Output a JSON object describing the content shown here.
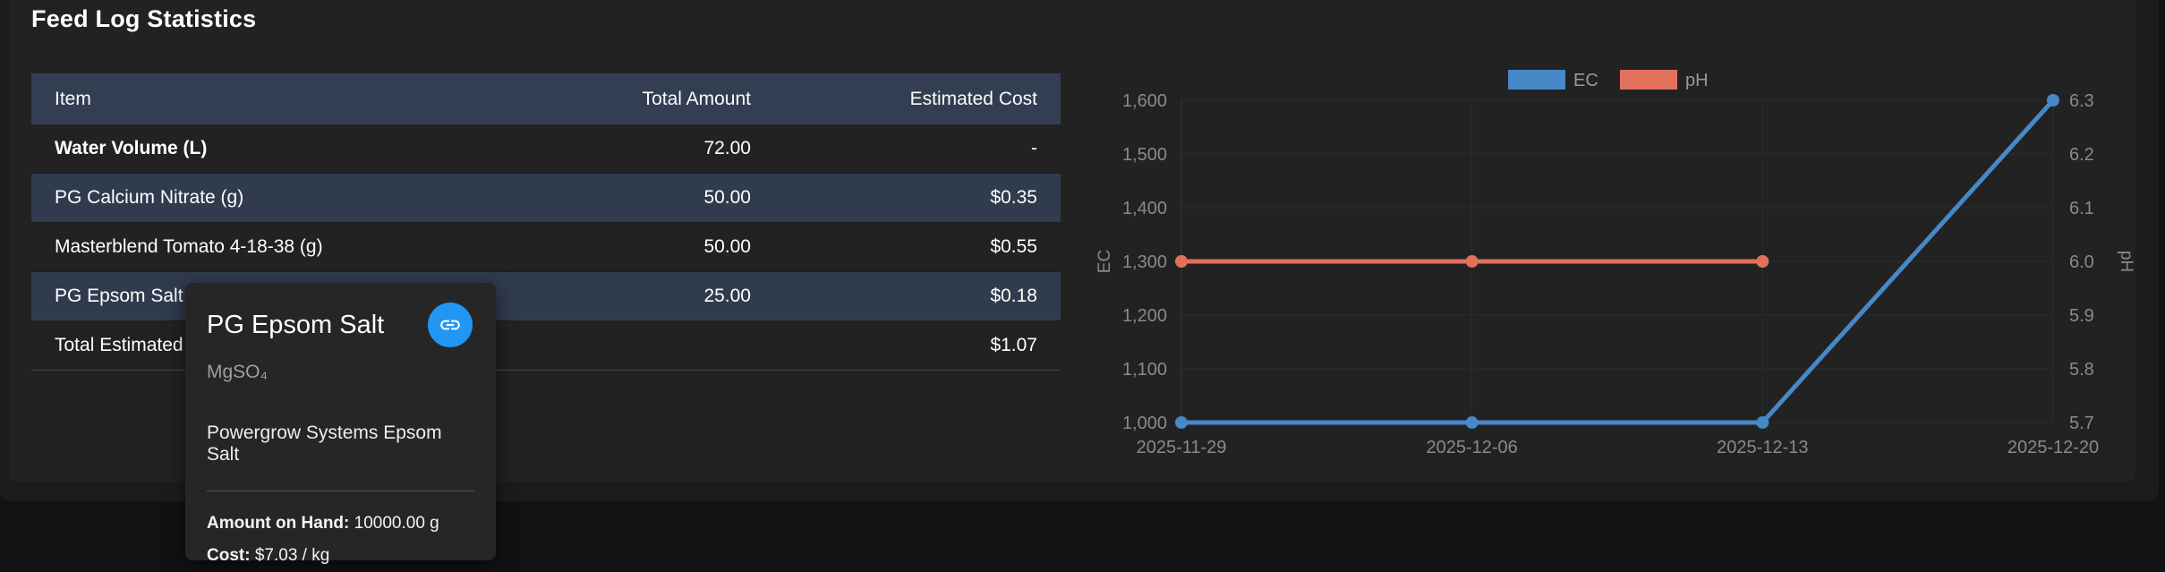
{
  "page": {
    "title": "Feed Log Statistics"
  },
  "table": {
    "columns": [
      "Item",
      "Total Amount",
      "Estimated Cost"
    ],
    "rows": [
      {
        "item": "Water Volume (L)",
        "amount": "72.00",
        "cost": "-",
        "bold": true,
        "striped": false
      },
      {
        "item": "PG Calcium Nitrate (g)",
        "amount": "50.00",
        "cost": "$0.35",
        "bold": false,
        "striped": true
      },
      {
        "item": "Masterblend Tomato 4-18-38 (g)",
        "amount": "50.00",
        "cost": "$0.55",
        "bold": false,
        "striped": false
      },
      {
        "item": "PG Epsom Salt (g)",
        "amount": "25.00",
        "cost": "$0.18",
        "bold": false,
        "striped": true
      },
      {
        "item": "Total Estimated Cost",
        "amount": "",
        "cost": "$1.07",
        "bold": false,
        "striped": false
      }
    ]
  },
  "tooltip": {
    "title": "PG Epsom Salt",
    "formula": "MgSO₄",
    "product": "Powergrow Systems Epsom Salt",
    "amount_label": "Amount on Hand:",
    "amount_value": "10000.00 g",
    "cost_label": "Cost:",
    "cost_value": "$7.03 / kg",
    "link_icon": "link",
    "link_button_color": "#2196f3"
  },
  "chart_data": {
    "type": "line",
    "x": [
      "2025-11-29",
      "2025-12-06",
      "2025-12-13",
      "2025-12-20"
    ],
    "series": [
      {
        "name": "EC",
        "axis": "left",
        "color": "#4788c7",
        "values": [
          1000,
          1000,
          1000,
          1600
        ]
      },
      {
        "name": "pH",
        "axis": "right",
        "color": "#e2715c",
        "values": [
          6.0,
          6.0,
          6.0,
          null
        ]
      }
    ],
    "left_axis": {
      "label": "EC",
      "min": 1000,
      "max": 1600,
      "ticks": [
        {
          "v": 1000,
          "t": "1,000"
        },
        {
          "v": 1100,
          "t": "1,100"
        },
        {
          "v": 1200,
          "t": "1,200"
        },
        {
          "v": 1300,
          "t": "1,300"
        },
        {
          "v": 1400,
          "t": "1,400"
        },
        {
          "v": 1500,
          "t": "1,500"
        },
        {
          "v": 1600,
          "t": "1,600"
        }
      ]
    },
    "right_axis": {
      "label": "pH",
      "min": 5.7,
      "max": 6.3,
      "ticks": [
        {
          "v": 5.7,
          "t": "5.7"
        },
        {
          "v": 5.8,
          "t": "5.8"
        },
        {
          "v": 5.9,
          "t": "5.9"
        },
        {
          "v": 6.0,
          "t": "6.0"
        },
        {
          "v": 6.1,
          "t": "6.1"
        },
        {
          "v": 6.2,
          "t": "6.2"
        },
        {
          "v": 6.3,
          "t": "6.3"
        }
      ]
    },
    "legend_position": "top",
    "grid": true
  }
}
